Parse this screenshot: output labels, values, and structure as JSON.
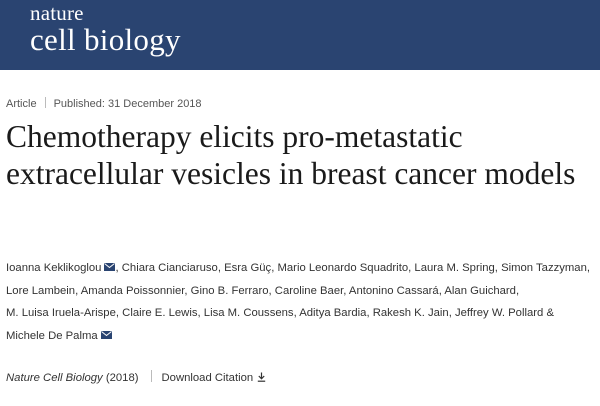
{
  "header": {
    "logo_line1": "nature",
    "logo_line2": "cell biology",
    "background_color": "#2a4471"
  },
  "meta": {
    "type": "Article",
    "published": "Published: 31 December 2018"
  },
  "article": {
    "title": "Chemotherapy elicits pro-metastatic extracellular vesicles in breast cancer models"
  },
  "authors": {
    "list": [
      {
        "name": "Ioanna Keklikoglou",
        "icon": "mail-icon"
      },
      {
        "name": "Chiara Cianciaruso"
      },
      {
        "name": "Esra Güç"
      },
      {
        "name": "Mario Leonardo Squadrito"
      },
      {
        "name": "Laura M. Spring"
      },
      {
        "name": "Simon Tazzyman"
      },
      {
        "name": "Lore Lambein"
      },
      {
        "name": "Amanda Poissonnier"
      },
      {
        "name": "Gino B. Ferraro"
      },
      {
        "name": "Caroline Baer"
      },
      {
        "name": "Antonino Cassará"
      },
      {
        "name": "Alan Guichard"
      },
      {
        "name": "M. Luisa Iruela-Arispe"
      },
      {
        "name": "Claire E. Lewis"
      },
      {
        "name": "Lisa M. Coussens"
      },
      {
        "name": "Aditya Bardia"
      },
      {
        "name": "Rakesh K. Jain"
      },
      {
        "name": "Jeffrey W. Pollard"
      },
      {
        "name": "Michele De Palma",
        "icon": "mail-icon"
      }
    ],
    "separator": ", ",
    "last_separator": " & "
  },
  "citation": {
    "journal": "Nature Cell Biology",
    "year": "(2018)",
    "download_label": "Download Citation",
    "download_icon": "download-icon"
  }
}
